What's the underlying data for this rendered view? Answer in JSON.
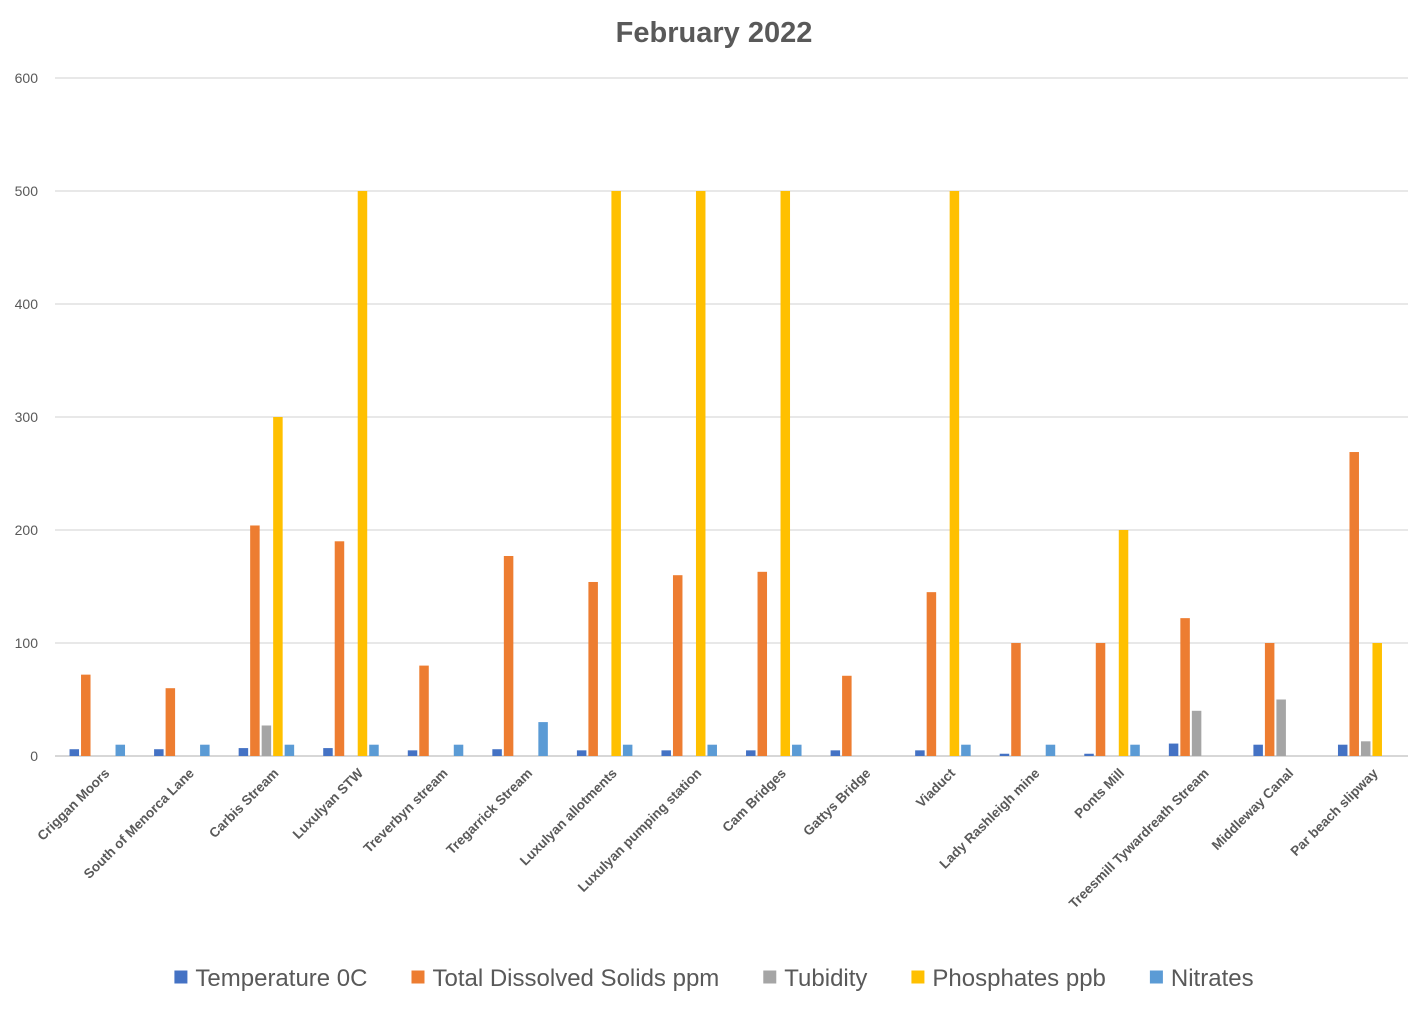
{
  "chart_data": {
    "type": "bar",
    "title": "February 2022",
    "xlabel": "",
    "ylabel": "",
    "ylim": [
      0,
      600
    ],
    "yticks": [
      0,
      100,
      200,
      300,
      400,
      500,
      600
    ],
    "grid": true,
    "legend_position": "bottom",
    "categories": [
      "Criggan Moors",
      "South of Menorca Lane",
      "Carbis Stream",
      "Luxulyan STW",
      "Treverbyn stream",
      "Tregarrick Stream",
      "Luxulyan allotments",
      "Luxulyan pumping station",
      "Cam Bridges",
      "Gattys Bridge",
      "Viaduct",
      "Lady Rashleigh mine",
      "Ponts Mill",
      "Treesmill Tywardreath Stream",
      "Middleway Canal",
      "Par beach slipway"
    ],
    "series": [
      {
        "name": "Temperature 0C",
        "color": "#4472c4",
        "values": [
          6,
          6,
          7,
          7,
          5,
          6,
          5,
          5,
          5,
          5,
          5,
          2,
          2,
          11,
          10,
          10
        ]
      },
      {
        "name": "Total Dissolved Solids ppm",
        "color": "#ed7d31",
        "values": [
          72,
          60,
          204,
          190,
          80,
          177,
          154,
          160,
          163,
          71,
          145,
          100,
          100,
          122,
          100,
          269
        ]
      },
      {
        "name": "Tubidity",
        "color": "#a5a5a5",
        "values": [
          0,
          0,
          27,
          0,
          0,
          0,
          0,
          0,
          0,
          0,
          0,
          0,
          0,
          40,
          50,
          13
        ]
      },
      {
        "name": "Phosphates ppb",
        "color": "#ffc000",
        "values": [
          0,
          0,
          300,
          500,
          0,
          0,
          500,
          500,
          500,
          0,
          500,
          0,
          200,
          0,
          0,
          100
        ]
      },
      {
        "name": "Nitrates",
        "color": "#5b9bd5",
        "values": [
          10,
          10,
          10,
          10,
          10,
          30,
          10,
          10,
          10,
          0,
          10,
          10,
          10,
          0,
          0,
          0
        ]
      }
    ]
  }
}
